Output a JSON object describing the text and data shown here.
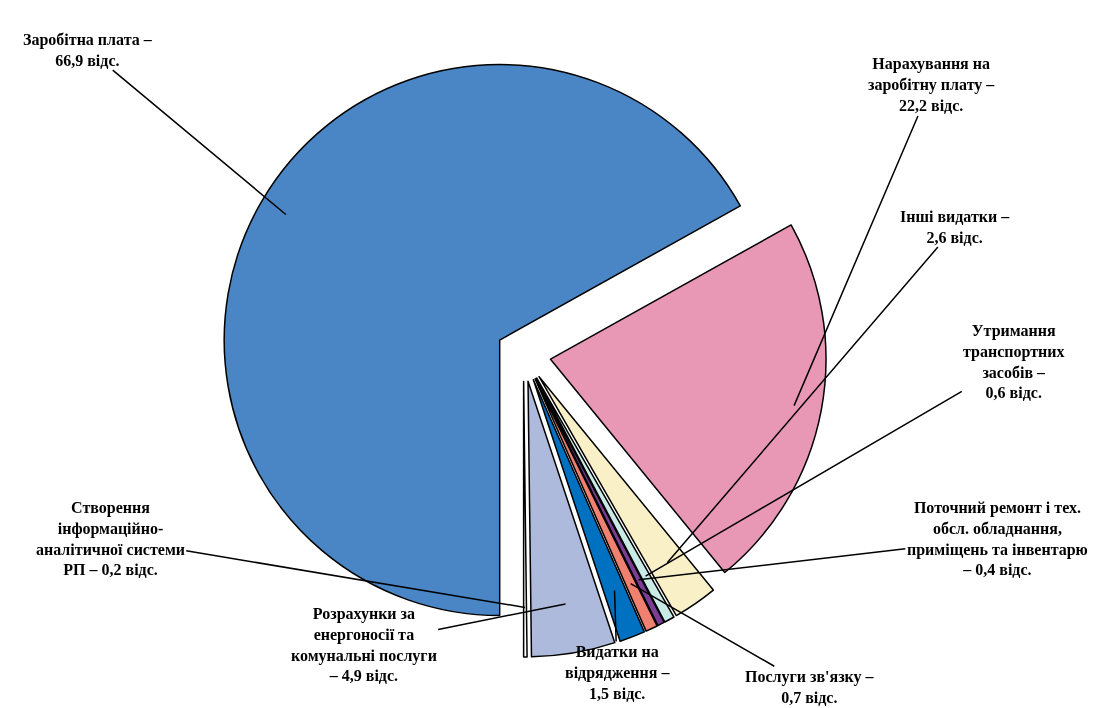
{
  "chart_data": {
    "type": "pie",
    "categories": [
      "Заробітна плата – 66,9 відс.",
      "Нарахування на заробітну плату – 22,2 відс.",
      "Інші видатки – 2,6 відс.",
      "Утримання транспортних засобів – 0,6 відс.",
      "Поточний ремонт і тех. обсл. обладнання, приміщень та інвентарю – 0,4 відс.",
      "Послуги зв'язку – 0,7 відс.",
      "Видатки на відрядження – 1,5 відс.",
      "Розрахунки за енергоносії та комунальні послуги – 4,9 відс.",
      "Створення інформаційно-аналітичної системи РП – 0,2 відс."
    ],
    "values": [
      66.9,
      22.2,
      2.6,
      0.6,
      0.4,
      0.7,
      1.5,
      4.9,
      0.2
    ],
    "colors": [
      "#4a86c5",
      "#e897b5",
      "#faf0c8",
      "#c9ebe6",
      "#7b3d96",
      "#f08070",
      "#0070c0",
      "#aebadc",
      "#ffffff"
    ],
    "legend": false
  }
}
